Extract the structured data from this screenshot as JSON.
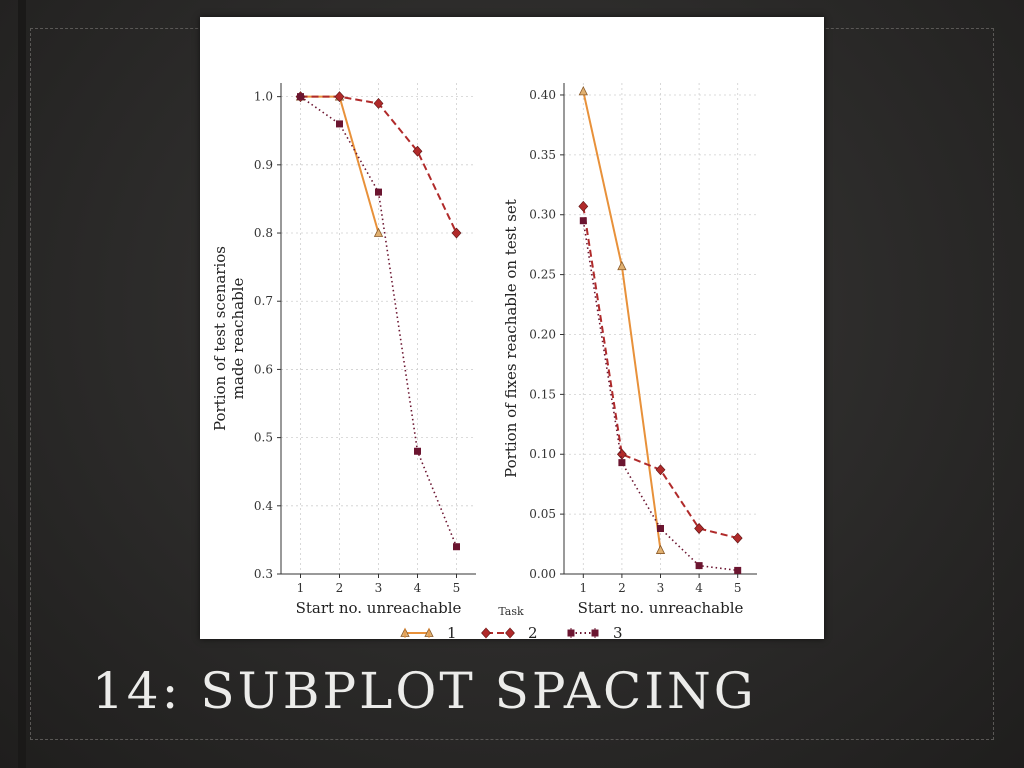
{
  "slide": {
    "title": "14: SUBPLOT SPACING"
  },
  "legend": {
    "title": "Task",
    "entries": [
      "1",
      "2",
      "3"
    ]
  },
  "colors": {
    "task1": "#e8913a",
    "task2": "#b02a2a",
    "task3": "#6b1530",
    "grid": "#cfcfcf",
    "axis": "#333333"
  },
  "chart_data": [
    {
      "type": "line",
      "xlabel": "Start no. unreachable",
      "ylabel_lines": [
        "Portion of test scenarios",
        "made reachable"
      ],
      "x_ticks": [
        "1",
        "2",
        "3",
        "4",
        "5"
      ],
      "y_ticks": [
        "0.3",
        "0.4",
        "0.5",
        "0.6",
        "0.7",
        "0.8",
        "0.9",
        "1.0"
      ],
      "ylim": [
        0.3,
        1.02
      ],
      "xlim": [
        0.5,
        5.5
      ],
      "grid": true,
      "series": [
        {
          "name": "1",
          "marker": "triangle",
          "style": "solid",
          "color": "#e8913a",
          "x": [
            1,
            2,
            3
          ],
          "y": [
            1.0,
            1.0,
            0.8
          ]
        },
        {
          "name": "2",
          "marker": "diamond",
          "style": "dashed",
          "color": "#b02a2a",
          "x": [
            1,
            2,
            3,
            4,
            5
          ],
          "y": [
            1.0,
            1.0,
            0.99,
            0.92,
            0.8
          ]
        },
        {
          "name": "3",
          "marker": "square",
          "style": "dotted",
          "color": "#6b1530",
          "x": [
            1,
            2,
            3,
            4,
            5
          ],
          "y": [
            1.0,
            0.96,
            0.86,
            0.48,
            0.34
          ]
        }
      ]
    },
    {
      "type": "line",
      "xlabel": "Start no. unreachable",
      "ylabel_lines": [
        "Portion of fixes reachable on test set"
      ],
      "x_ticks": [
        "1",
        "2",
        "3",
        "4",
        "5"
      ],
      "y_ticks": [
        "0.00",
        "0.05",
        "0.10",
        "0.15",
        "0.20",
        "0.25",
        "0.30",
        "0.35",
        "0.40"
      ],
      "ylim": [
        0.0,
        0.41
      ],
      "xlim": [
        0.5,
        5.5
      ],
      "grid": true,
      "series": [
        {
          "name": "1",
          "marker": "triangle",
          "style": "solid",
          "color": "#e8913a",
          "x": [
            1,
            2,
            3
          ],
          "y": [
            0.403,
            0.257,
            0.02
          ]
        },
        {
          "name": "2",
          "marker": "diamond",
          "style": "dashed",
          "color": "#b02a2a",
          "x": [
            1,
            2,
            3,
            4,
            5
          ],
          "y": [
            0.307,
            0.1,
            0.087,
            0.038,
            0.03
          ]
        },
        {
          "name": "3",
          "marker": "square",
          "style": "dotted",
          "color": "#6b1530",
          "x": [
            1,
            2,
            3,
            4,
            5
          ],
          "y": [
            0.295,
            0.093,
            0.038,
            0.007,
            0.003
          ]
        }
      ]
    }
  ]
}
